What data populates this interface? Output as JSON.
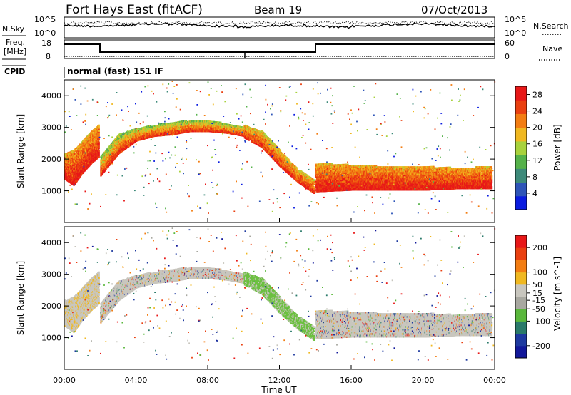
{
  "header": {
    "station": "Fort Hays East (fitACF)",
    "beam": "Beam 19",
    "date": "07/Oct/2013"
  },
  "noise_panel": {
    "left_label": "N.Sky",
    "right_label": "N.Search",
    "left_ticks": [
      "10^5",
      "10^0"
    ],
    "right_ticks": [
      "10^5",
      "10^0"
    ]
  },
  "freq_panel": {
    "left_label_line1": "Freq.",
    "left_label_line2": "[MHz]",
    "right_label": "Nave",
    "left_ticks": [
      "18",
      "8"
    ],
    "right_ticks": [
      "60",
      "0"
    ]
  },
  "cpid": {
    "label": "CPID",
    "mode": "normal (fast) 151 IF"
  },
  "colors": {
    "power": [
      "#0a1ce0",
      "#2e55b8",
      "#3d8a7a",
      "#55b24a",
      "#a8d23c",
      "#f0b820",
      "#f37d12",
      "#ea4010",
      "#e81818"
    ],
    "velocity": [
      "#e81818",
      "#ea4010",
      "#f37d12",
      "#f0b820",
      "#c8c6be",
      "#a8a8a0",
      "#5ab83c",
      "#2a7a6a",
      "#1e3aa0",
      "#12189a"
    ],
    "trace": "#000000"
  },
  "chart_data": [
    {
      "type": "heatmap",
      "quantity": "power",
      "ylabel": "Slant Range [km]",
      "yticks": [
        1000,
        2000,
        3000,
        4000
      ],
      "ylim": [
        0,
        4500
      ],
      "xlim": [
        0,
        24
      ],
      "colorbar": {
        "label": "Power [dB]",
        "ticks": [
          4,
          8,
          12,
          16,
          20,
          24,
          28
        ],
        "range": [
          0,
          30
        ]
      },
      "features": [
        {
          "desc": "E/F echoes 00-02 UT",
          "t": [
            0,
            0.5,
            1.0,
            1.5,
            1.9
          ],
          "r_low": [
            1400,
            1200,
            1600,
            1900,
            2100
          ],
          "r_high": [
            2200,
            2300,
            2600,
            2900,
            3100
          ],
          "power": 24
        },
        {
          "desc": "rising band 02-10 UT",
          "t": [
            2,
            3,
            4,
            5,
            6,
            7,
            8,
            9,
            10
          ],
          "r_low": [
            1500,
            2200,
            2600,
            2750,
            2800,
            2900,
            2900,
            2850,
            2750
          ],
          "r_high": [
            2100,
            2800,
            3000,
            3100,
            3200,
            3250,
            3250,
            3150,
            3050
          ],
          "power": 20
        },
        {
          "desc": "descending band 10-14 UT",
          "t": [
            10,
            11,
            12,
            13,
            13.9
          ],
          "r_low": [
            2700,
            2400,
            1800,
            1300,
            950
          ],
          "r_high": [
            3100,
            2900,
            2300,
            1700,
            1400
          ],
          "power": 22
        },
        {
          "desc": "ground scatter 14-24 UT",
          "t": [
            14,
            16,
            18,
            20,
            22,
            23.8
          ],
          "r_low": [
            1000,
            1050,
            1050,
            1050,
            1100,
            1100
          ],
          "r_high": [
            1900,
            1850,
            1800,
            1800,
            1750,
            1800
          ],
          "power": 24
        }
      ]
    },
    {
      "type": "heatmap",
      "quantity": "velocity",
      "ylabel": "Slant Range [km]",
      "yticks": [
        1000,
        2000,
        3000,
        4000
      ],
      "ylim": [
        0,
        4500
      ],
      "xlim": [
        0,
        24
      ],
      "xlabel": "Time UT",
      "xticks": [
        "00:00",
        "04:00",
        "08:00",
        "12:00",
        "16:00",
        "20:00",
        "00:00"
      ],
      "colorbar": {
        "label": "Velocity [m s^-1]",
        "ticks": [
          200,
          100,
          50,
          15,
          -15,
          -50,
          -100,
          -200
        ],
        "range": [
          -250,
          250
        ]
      }
    }
  ]
}
